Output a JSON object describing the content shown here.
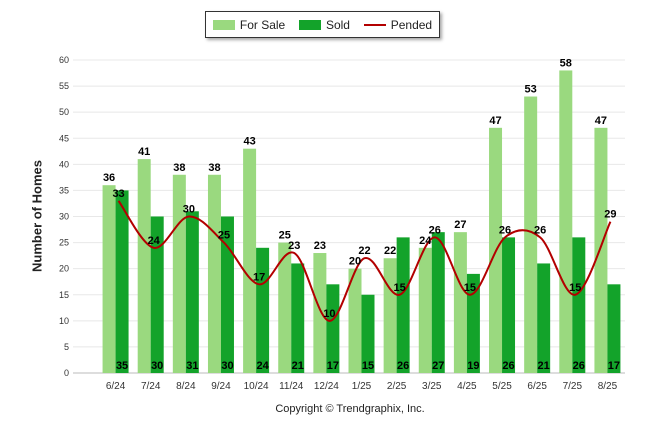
{
  "chart_data": {
    "type": "bar",
    "ylabel": "Number of Homes",
    "xlabel": "",
    "ylim": [
      0,
      60
    ],
    "yticks": [
      "0",
      "5",
      "10",
      "15",
      "20",
      "25",
      "30",
      "35",
      "40",
      "45",
      "50",
      "55",
      "60"
    ],
    "grid": true,
    "legend_placement": "top-center",
    "categories": [
      "6/24",
      "7/24",
      "8/24",
      "9/24",
      "10/24",
      "11/24",
      "12/24",
      "1/25",
      "2/25",
      "3/25",
      "4/25",
      "5/25",
      "6/25",
      "7/25",
      "8/25"
    ],
    "series": [
      {
        "name": "For Sale",
        "type": "bar",
        "color": "#9ad97f",
        "values": [
          36,
          41,
          38,
          38,
          43,
          25,
          23,
          20,
          22,
          24,
          27,
          47,
          53,
          58,
          47
        ]
      },
      {
        "name": "Sold",
        "type": "bar",
        "color": "#13a32a",
        "values": [
          35,
          30,
          31,
          30,
          24,
          21,
          17,
          15,
          26,
          27,
          19,
          26,
          21,
          26,
          17
        ]
      },
      {
        "name": "Pended",
        "type": "line",
        "color": "#b30000",
        "values": [
          33,
          24,
          30,
          25,
          17,
          23,
          10,
          22,
          15,
          26,
          15,
          26,
          26,
          15,
          29
        ]
      }
    ]
  },
  "footer": {
    "copyright": "Copyright © Trendgraphix, Inc."
  }
}
